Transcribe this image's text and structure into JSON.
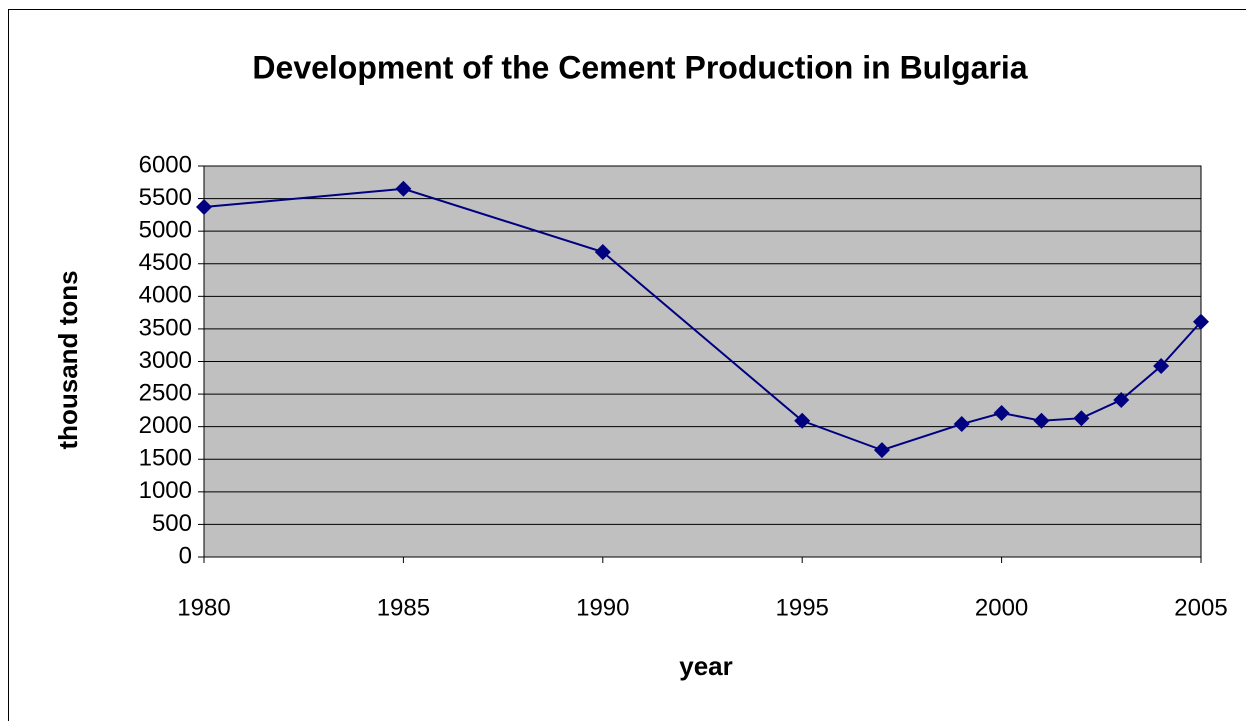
{
  "chart_data": {
    "type": "line",
    "title": "Development of the Cement Production in Bulgaria",
    "xlabel": "year",
    "ylabel": "thousand tons",
    "x": [
      1980,
      1985,
      1990,
      1995,
      1997,
      1999,
      2000,
      2001,
      2002,
      2003,
      2004,
      2005
    ],
    "series": [
      {
        "name": "cement production",
        "color": "#000080",
        "values": [
          5370,
          5650,
          4680,
          2090,
          1640,
          2040,
          2210,
          2090,
          2130,
          2410,
          2930,
          3610
        ]
      }
    ],
    "xlim": [
      1980,
      2005
    ],
    "xticks": [
      1980,
      1985,
      1990,
      1995,
      2000,
      2005
    ],
    "ylim": [
      0,
      6000
    ],
    "yticks": [
      0,
      500,
      1000,
      1500,
      2000,
      2500,
      3000,
      3500,
      4000,
      4500,
      5000,
      5500,
      6000
    ],
    "grid": true,
    "plot_background": "#c0c0c0"
  }
}
